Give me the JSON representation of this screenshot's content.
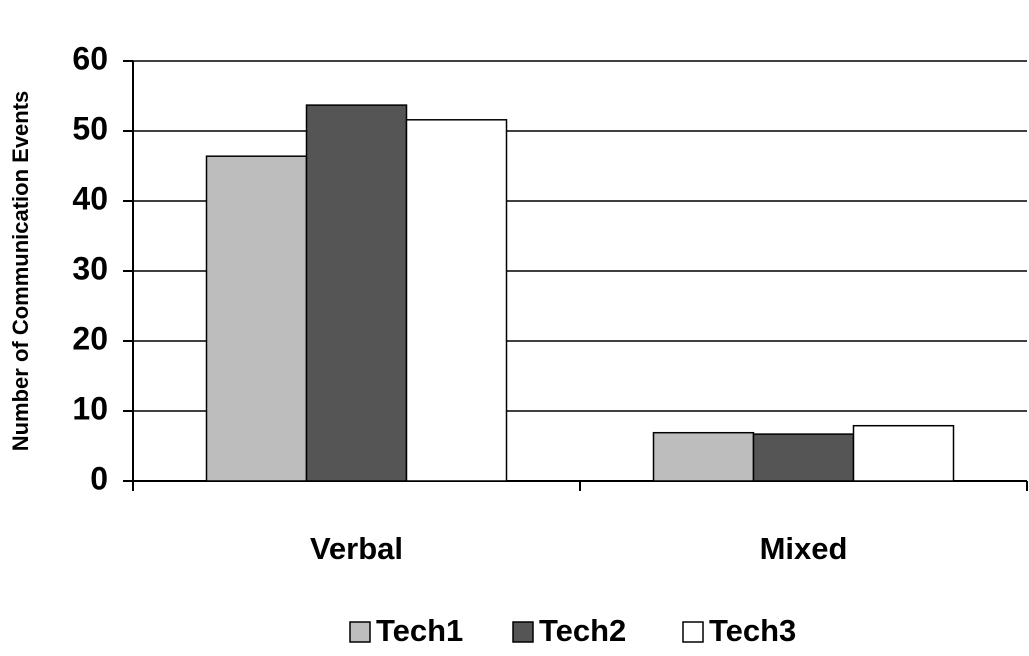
{
  "chart_data": {
    "type": "bar",
    "y_label": "Number of Communication Events",
    "categories": [
      "Verbal",
      "Mixed"
    ],
    "series": [
      {
        "name": "Tech1",
        "color": "#bdbdbd",
        "values": [
          46.4,
          6.9
        ]
      },
      {
        "name": "Tech2",
        "color": "#555555",
        "values": [
          53.7,
          6.7
        ]
      },
      {
        "name": "Tech3",
        "color": "#ffffff",
        "values": [
          51.6,
          7.9
        ]
      }
    ],
    "ylim": [
      0,
      60
    ],
    "yticks": [
      0,
      10,
      20,
      30,
      40,
      50,
      60
    ],
    "grid": true,
    "legend": "bottom"
  }
}
